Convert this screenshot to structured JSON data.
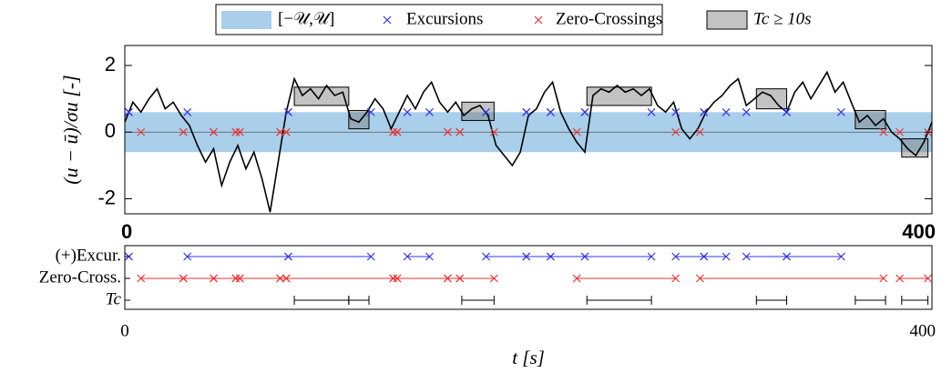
{
  "chart_data": [
    {
      "type": "line",
      "ylabel": "(u − ū)/σu  [-]",
      "legend": {
        "band": "[−𝒰,𝒰]",
        "excursions": "Excursions",
        "zero_crossings": "Zero-Crossings",
        "boxes": "Tc ≥ 10s"
      },
      "xlim": [
        0,
        400
      ],
      "xticks": [
        0,
        400
      ],
      "ylim": [
        -2.45,
        2.6
      ],
      "yticks": [
        -2,
        0,
        2
      ],
      "band": 0.6,
      "color": "#000000",
      "band_color": "#a9cfea",
      "box_color": "#7a7a7a",
      "x": [
        0,
        4,
        8,
        12,
        16,
        20,
        24,
        28,
        32,
        36,
        40,
        44,
        48,
        52,
        56,
        60,
        64,
        68,
        72,
        76,
        80,
        84,
        88,
        92,
        96,
        100,
        104,
        108,
        112,
        116,
        120,
        124,
        128,
        132,
        136,
        140,
        144,
        148,
        152,
        156,
        160,
        164,
        168,
        172,
        176,
        180,
        184,
        188,
        192,
        196,
        200,
        204,
        208,
        212,
        216,
        220,
        224,
        228,
        232,
        236,
        240,
        244,
        248,
        252,
        256,
        260,
        264,
        268,
        272,
        276,
        280,
        284,
        288,
        292,
        296,
        300,
        304,
        308,
        312,
        316,
        320,
        324,
        328,
        332,
        336,
        340,
        344,
        348,
        352,
        356,
        360,
        364,
        368,
        372,
        376,
        380,
        384,
        388,
        392,
        396,
        400
      ],
      "values": [
        0.3,
        0.9,
        0.6,
        1.0,
        1.3,
        0.7,
        0.9,
        0.5,
        0.2,
        -0.4,
        -0.9,
        -0.5,
        -1.6,
        -0.9,
        -0.4,
        -1.1,
        -0.6,
        -1.4,
        -2.4,
        -0.9,
        0.6,
        1.6,
        1.1,
        1.3,
        1.0,
        1.4,
        1.1,
        1.2,
        0.4,
        0.3,
        0.6,
        1.0,
        0.7,
        0.1,
        0.6,
        1.1,
        0.7,
        1.2,
        1.5,
        0.9,
        0.6,
        0.9,
        0.5,
        0.7,
        0.8,
        0.5,
        -0.4,
        -0.7,
        -1.0,
        -0.6,
        0.5,
        0.7,
        1.2,
        1.5,
        0.6,
        0.1,
        -0.3,
        -0.6,
        1.1,
        1.3,
        1.2,
        1.4,
        1.2,
        1.3,
        1.1,
        1.3,
        0.8,
        0.6,
        0.9,
        0.1,
        -0.2,
        0.1,
        0.6,
        0.9,
        1.1,
        1.4,
        1.6,
        0.8,
        1.0,
        1.2,
        1.1,
        0.8,
        0.6,
        1.2,
        1.5,
        1.0,
        1.4,
        1.8,
        1.2,
        1.5,
        0.9,
        0.3,
        0.5,
        0.2,
        0.4,
        0.0,
        -0.2,
        -0.5,
        -0.7,
        -0.3,
        0.3
      ],
      "boxes": [
        [
          84,
          111,
          0.8,
          1.35
        ],
        [
          111,
          121,
          0.1,
          0.65
        ],
        [
          167,
          183,
          0.35,
          0.9
        ],
        [
          229,
          261,
          0.8,
          1.35
        ],
        [
          313,
          328,
          0.7,
          1.3
        ],
        [
          362,
          377,
          0.1,
          0.65
        ],
        [
          385,
          398,
          -0.75,
          -0.2
        ]
      ]
    },
    {
      "type": "event",
      "rows": [
        "(+)Excur.",
        "Zero-Cross.",
        "Tc"
      ],
      "xlabel": "t [s]",
      "xlim": [
        0,
        400
      ],
      "xticks": [
        0,
        400
      ],
      "colors": [
        "#3333ee",
        "#ee3333",
        "#000000"
      ],
      "excursions": [
        [
          2,
          2
        ],
        [
          31,
          81
        ],
        [
          81,
          122
        ],
        [
          140,
          151
        ],
        [
          179,
          199
        ],
        [
          199,
          211
        ],
        [
          211,
          228
        ],
        [
          228,
          261
        ],
        [
          273,
          287
        ],
        [
          287,
          298
        ],
        [
          308,
          328
        ],
        [
          328,
          355
        ]
      ],
      "zero_crossings": [
        [
          8,
          29
        ],
        [
          29,
          44
        ],
        [
          44,
          55
        ],
        [
          55,
          57
        ],
        [
          57,
          77
        ],
        [
          77,
          80
        ],
        [
          80,
          133
        ],
        [
          133,
          135
        ],
        [
          135,
          160
        ],
        [
          160,
          166
        ],
        [
          166,
          183
        ],
        [
          224,
          273
        ],
        [
          285,
          376
        ],
        [
          384,
          398
        ]
      ],
      "durations": [
        [
          84,
          111
        ],
        [
          111,
          121
        ],
        [
          167,
          183
        ],
        [
          229,
          261
        ],
        [
          313,
          328
        ],
        [
          362,
          377
        ],
        [
          385,
          398
        ]
      ]
    }
  ]
}
